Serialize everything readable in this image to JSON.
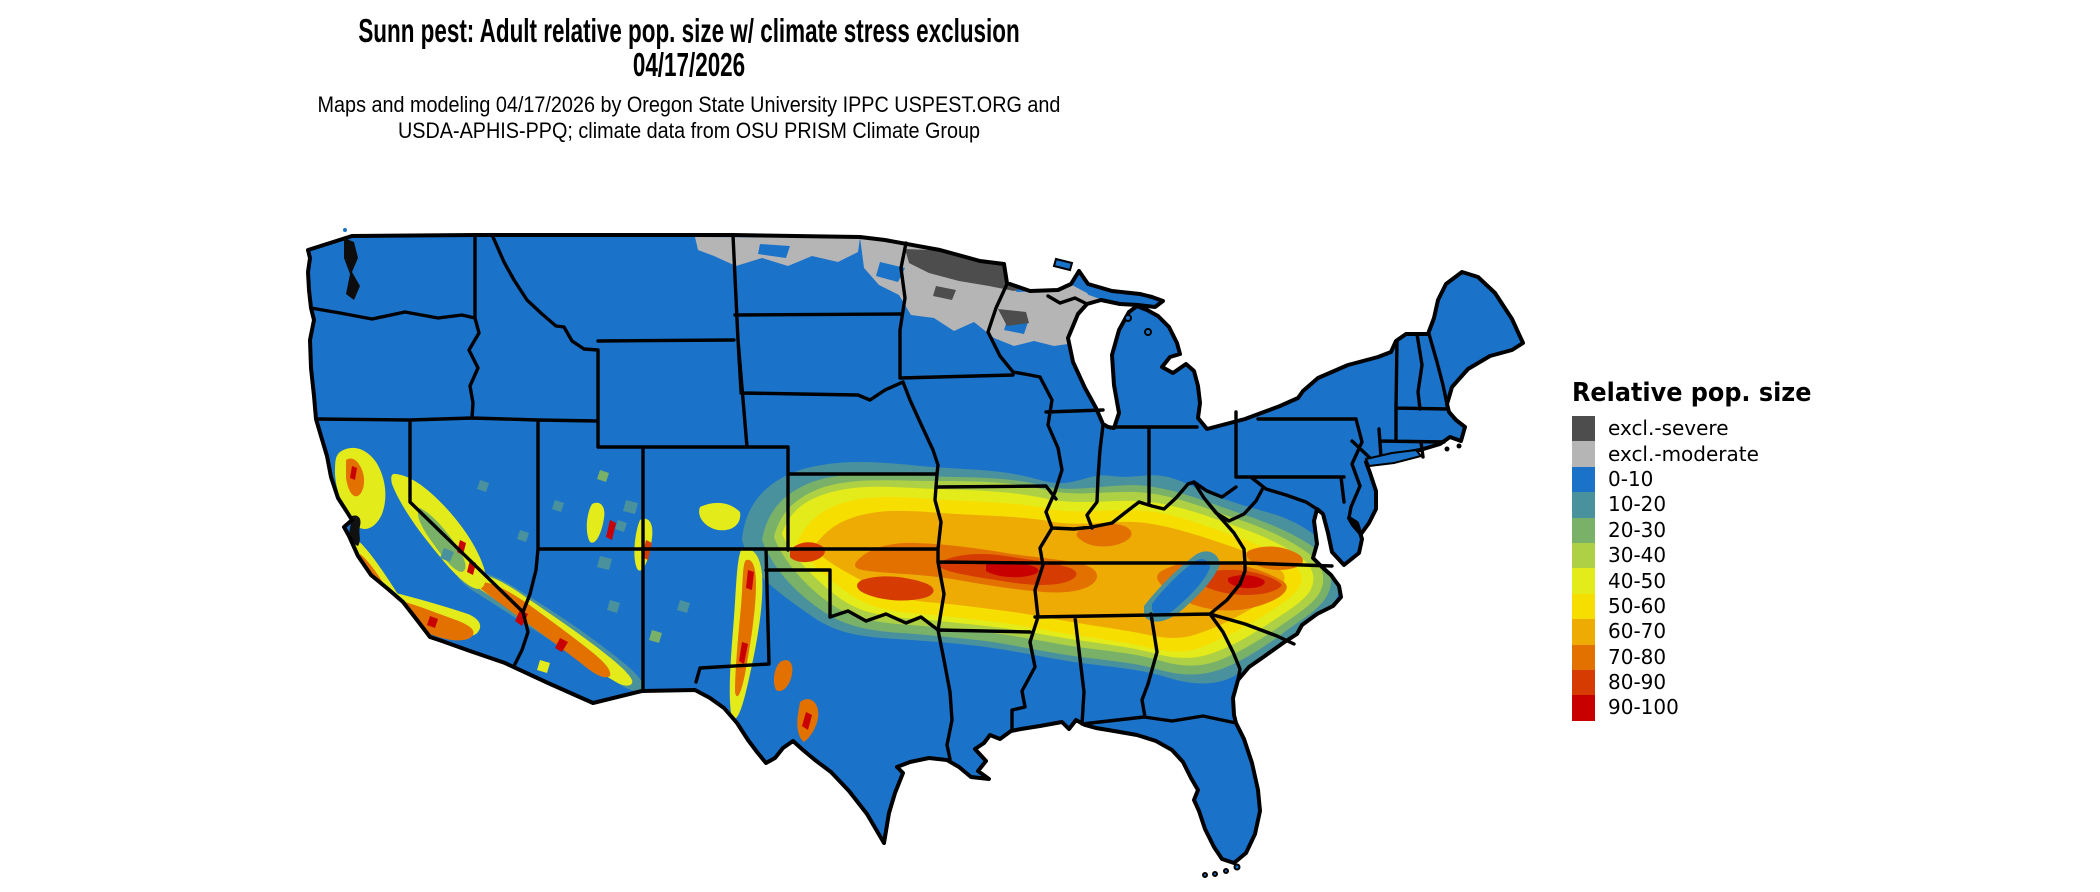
{
  "title": {
    "line1": "Sunn pest: Adult relative pop. size w/ climate stress exclusion",
    "line2": "04/17/2026"
  },
  "subtitle": {
    "line1": "Maps and modeling 04/17/2026 by Oregon State University IPPC USPEST.ORG and",
    "line2": "USDA-APHIS-PPQ; climate data from OSU PRISM Climate Group"
  },
  "legend": {
    "title": "Relative pop. size",
    "items": [
      {
        "label": "excl.-severe",
        "color": "#4d4d4d"
      },
      {
        "label": "excl.-moderate",
        "color": "#b5b5b5"
      },
      {
        "label": "0-10",
        "color": "#1b72c9"
      },
      {
        "label": "10-20",
        "color": "#4a919e"
      },
      {
        "label": "20-30",
        "color": "#7ab169"
      },
      {
        "label": "30-40",
        "color": "#aed044"
      },
      {
        "label": "40-50",
        "color": "#e4eb1a"
      },
      {
        "label": "50-60",
        "color": "#f6de00"
      },
      {
        "label": "60-70",
        "color": "#eeab04"
      },
      {
        "label": "70-80",
        "color": "#e27100"
      },
      {
        "label": "80-90",
        "color": "#d63b02"
      },
      {
        "label": "90-100",
        "color": "#c90000"
      }
    ]
  },
  "map": {
    "region": "Contiguous United States",
    "water_color": "#ffffff",
    "boundary_color": "#000000"
  }
}
